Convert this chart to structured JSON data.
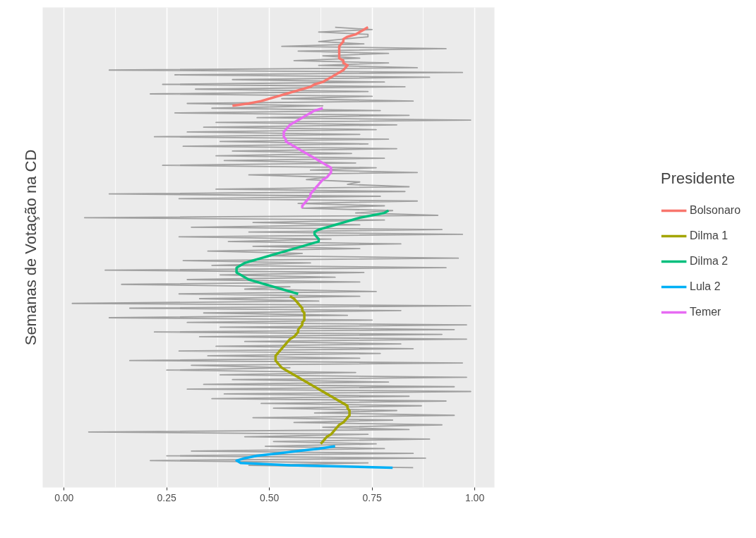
{
  "chart_data": {
    "type": "line",
    "orientation": "horizontal",
    "ylabel": "Semanas de Votação na CD",
    "legend_title": "Presidente",
    "legend": "right",
    "grid": "x",
    "tick_labels": "x",
    "line_style": "solid",
    "marker": "none",
    "xlim": [
      -0.052,
      1.048
    ],
    "xticks": [
      {
        "value": 0,
        "label": "0.00"
      },
      {
        "value": 0.25,
        "label": "0.25"
      },
      {
        "value": 0.5,
        "label": "0.50"
      },
      {
        "value": 0.75,
        "label": "0.75"
      },
      {
        "value": 1,
        "label": "1.00"
      }
    ],
    "categories": [
      null,
      null,
      null,
      null,
      null,
      null,
      null,
      null,
      null,
      null,
      null,
      null,
      null,
      null,
      null,
      null,
      null,
      null,
      null,
      null,
      null,
      null,
      null,
      null,
      null,
      null,
      null,
      null,
      null,
      null,
      null,
      null,
      null,
      null,
      null,
      null,
      null,
      null,
      null,
      null,
      null,
      null,
      null,
      null,
      null,
      null,
      null,
      null,
      null,
      null,
      null,
      null,
      null,
      null,
      null,
      null,
      null,
      null,
      null,
      null,
      null,
      null,
      null,
      null,
      null,
      null,
      null,
      null,
      null,
      null,
      null,
      null,
      null,
      null,
      null,
      null,
      null,
      null,
      null,
      null,
      null,
      null,
      null,
      null,
      null,
      null,
      null,
      null,
      null,
      null,
      null,
      null,
      null,
      null,
      null,
      null,
      null,
      null,
      null,
      null,
      null,
      null,
      null,
      null,
      null,
      null,
      null,
      null,
      null,
      null,
      null,
      null,
      null,
      null,
      null,
      null,
      null,
      null,
      null,
      null,
      null,
      null,
      null,
      null,
      null,
      null,
      null,
      null,
      null,
      null,
      null,
      null,
      null,
      null,
      null,
      null,
      null,
      null,
      null,
      null,
      null,
      null,
      null,
      null,
      null,
      null,
      null,
      null,
      null,
      null,
      null,
      null,
      null,
      null,
      null,
      null,
      null,
      null,
      null,
      null,
      null,
      null,
      null,
      null,
      null,
      null,
      null,
      null,
      null,
      null,
      null,
      null,
      null,
      null,
      null,
      null,
      null,
      null,
      null,
      null,
      null,
      null,
      null,
      null,
      null,
      null
    ],
    "series": [
      {
        "color": "#a0a0a0",
        "values": [
          0.66,
          0.75,
          0.62,
          0.74,
          0.74,
          0.68,
          0.62,
          0.73,
          0.53,
          0.93,
          0.57,
          0.79,
          0.63,
          0.72,
          0.56,
          0.79,
          0.62,
          0.86,
          0.11,
          0.97,
          0.27,
          0.89,
          0.41,
          0.78,
          0.24,
          0.83,
          0.32,
          0.74,
          0.21,
          0.75,
          0.53,
          0.85,
          0.3,
          0.63,
          0.36,
          0.77,
          0.27,
          0.84,
          0.47,
          0.99,
          0.37,
          0.81,
          0.34,
          0.76,
          0.3,
          0.72,
          0.22,
          0.79,
          0.38,
          0.74,
          0.29,
          0.81,
          0.41,
          0.7,
          0.37,
          0.78,
          0.39,
          0.71,
          0.24,
          0.76,
          0.6,
          0.86,
          0.45,
          0.64,
          0.59,
          0.72,
          0.69,
          0.84,
          0.37,
          0.83,
          0.11,
          0.77,
          0.28,
          0.86,
          0.57,
          0.78,
          0.58,
          0.8,
          0.71,
          0.91,
          0.05,
          0.78,
          0.46,
          0.72,
          0.31,
          0.92,
          0.45,
          0.97,
          0.28,
          0.65,
          0.4,
          0.82,
          0.46,
          0.72,
          0.35,
          0.58,
          0.5,
          0.96,
          0.29,
          0.6,
          0.36,
          0.93,
          0.1,
          0.73,
          0.38,
          0.66,
          0.3,
          0.72,
          0.14,
          0.55,
          0.44,
          0.76,
          0.28,
          0.72,
          0.33,
          0.62,
          0.02,
          0.99,
          0.16,
          0.82,
          0.34,
          0.69,
          0.11,
          0.75,
          0.3,
          0.98,
          0.38,
          0.95,
          0.22,
          0.92,
          0.33,
          0.98,
          0.44,
          0.82,
          0.37,
          0.85,
          0.28,
          0.77,
          0.35,
          0.72,
          0.16,
          0.97,
          0.31,
          0.55,
          0.25,
          0.71,
          0.38,
          0.98,
          0.41,
          0.79,
          0.34,
          0.95,
          0.3,
          0.99,
          0.39,
          0.84,
          0.36,
          0.93,
          0.48,
          0.87,
          0.51,
          0.81,
          0.61,
          0.95,
          0.46,
          0.8,
          0.56,
          0.92,
          0.63,
          0.84,
          0.06,
          0.74,
          0.44,
          0.89,
          0.51,
          0.76,
          0.49,
          0.78,
          0.31,
          0.85,
          0.25,
          0.88,
          0.21,
          0.74,
          0.45,
          0.85
        ]
      },
      {
        "name": "Bolsonaro",
        "color": "#f8766d",
        "values": [
          0.74,
          0.73,
          0.72,
          0.71,
          0.69,
          0.68,
          0.68,
          0.675,
          0.67,
          0.67,
          0.67,
          0.67,
          0.67,
          0.67,
          0.68,
          0.68,
          0.69,
          0.685,
          0.68,
          0.67,
          0.66,
          0.65,
          0.64,
          0.63,
          0.61,
          0.6,
          0.58,
          0.56,
          0.54,
          0.52,
          0.5,
          0.48,
          0.45,
          0.41,
          null,
          null,
          null,
          null,
          null,
          null,
          null,
          null,
          null,
          null,
          null,
          null,
          null,
          null,
          null,
          null,
          null,
          null,
          null,
          null,
          null,
          null,
          null,
          null,
          null,
          null,
          null,
          null,
          null,
          null,
          null,
          null,
          null,
          null,
          null,
          null,
          null,
          null,
          null,
          null,
          null,
          null,
          null,
          null,
          null,
          null,
          null,
          null,
          null,
          null,
          null,
          null,
          null,
          null,
          null,
          null,
          null,
          null,
          null,
          null,
          null,
          null,
          null,
          null,
          null,
          null,
          null,
          null,
          null,
          null,
          null,
          null,
          null,
          null,
          null,
          null,
          null,
          null,
          null,
          null,
          null,
          null,
          null,
          null,
          null,
          null,
          null,
          null,
          null,
          null,
          null,
          null,
          null,
          null,
          null,
          null,
          null,
          null,
          null,
          null,
          null,
          null,
          null,
          null,
          null,
          null,
          null,
          null,
          null,
          null,
          null,
          null,
          null,
          null,
          null,
          null,
          null,
          null,
          null,
          null,
          null,
          null,
          null,
          null,
          null,
          null,
          null,
          null,
          null,
          null,
          null,
          null,
          null,
          null,
          null,
          null,
          null,
          null,
          null,
          null,
          null,
          null,
          null,
          null,
          null,
          null,
          null,
          null,
          null,
          null,
          null,
          null
        ]
      },
      {
        "name": "Dilma 1",
        "color": "#a3a500",
        "values": [
          null,
          null,
          null,
          null,
          null,
          null,
          null,
          null,
          null,
          null,
          null,
          null,
          null,
          null,
          null,
          null,
          null,
          null,
          null,
          null,
          null,
          null,
          null,
          null,
          null,
          null,
          null,
          null,
          null,
          null,
          null,
          null,
          null,
          null,
          null,
          null,
          null,
          null,
          null,
          null,
          null,
          null,
          null,
          null,
          null,
          null,
          null,
          null,
          null,
          null,
          null,
          null,
          null,
          null,
          null,
          null,
          null,
          null,
          null,
          null,
          null,
          null,
          null,
          null,
          null,
          null,
          null,
          null,
          null,
          null,
          null,
          null,
          null,
          null,
          null,
          null,
          null,
          null,
          null,
          null,
          null,
          null,
          null,
          null,
          null,
          null,
          null,
          null,
          null,
          null,
          null,
          null,
          null,
          null,
          null,
          null,
          null,
          null,
          null,
          null,
          null,
          null,
          null,
          null,
          null,
          null,
          null,
          null,
          null,
          null,
          null,
          null,
          null,
          0.55,
          0.56,
          0.565,
          0.57,
          0.575,
          0.58,
          0.58,
          0.585,
          0.585,
          0.585,
          0.585,
          0.58,
          0.58,
          0.575,
          0.57,
          0.57,
          0.565,
          0.56,
          0.55,
          0.545,
          0.54,
          0.535,
          0.53,
          0.525,
          0.52,
          0.515,
          0.515,
          0.515,
          0.52,
          0.525,
          0.53,
          0.54,
          0.55,
          0.56,
          0.57,
          0.58,
          0.59,
          0.6,
          0.61,
          0.62,
          0.63,
          0.64,
          0.65,
          0.66,
          0.67,
          0.68,
          0.69,
          0.69,
          0.695,
          0.695,
          0.695,
          0.69,
          0.685,
          0.68,
          0.67,
          0.665,
          0.66,
          0.655,
          0.65,
          0.64,
          0.635,
          0.63,
          0.625,
          null,
          null,
          null,
          null,
          null,
          null,
          null,
          null,
          null,
          null
        ]
      },
      {
        "name": "Dilma 2",
        "color": "#00bf7d",
        "values": [
          null,
          null,
          null,
          null,
          null,
          null,
          null,
          null,
          null,
          null,
          null,
          null,
          null,
          null,
          null,
          null,
          null,
          null,
          null,
          null,
          null,
          null,
          null,
          null,
          null,
          null,
          null,
          null,
          null,
          null,
          null,
          null,
          null,
          null,
          null,
          null,
          null,
          null,
          null,
          null,
          null,
          null,
          null,
          null,
          null,
          null,
          null,
          null,
          null,
          null,
          null,
          null,
          null,
          null,
          null,
          null,
          null,
          null,
          null,
          null,
          null,
          null,
          null,
          null,
          null,
          null,
          null,
          null,
          null,
          null,
          null,
          null,
          null,
          null,
          null,
          null,
          null,
          0.79,
          0.78,
          0.75,
          0.72,
          0.7,
          0.68,
          0.66,
          0.64,
          0.62,
          0.61,
          0.61,
          0.615,
          0.62,
          0.62,
          0.6,
          0.58,
          0.56,
          0.54,
          0.52,
          0.5,
          0.48,
          0.46,
          0.44,
          0.43,
          0.42,
          0.42,
          0.42,
          0.43,
          0.44,
          0.45,
          0.47,
          0.49,
          0.51,
          0.53,
          0.55,
          0.57,
          null,
          null,
          null,
          null,
          null,
          null,
          null,
          null,
          null,
          null,
          null,
          null,
          null,
          null,
          null,
          null,
          null,
          null,
          null,
          null,
          null,
          null,
          null,
          null,
          null,
          null,
          null,
          null,
          null,
          null,
          null,
          null,
          null,
          null,
          null,
          null,
          null,
          null,
          null,
          null,
          null,
          null,
          null,
          null,
          null,
          null,
          null,
          null,
          null,
          null,
          null,
          null,
          null,
          null,
          null,
          null,
          null,
          null,
          null,
          null,
          null,
          null,
          null,
          null,
          null,
          null,
          null,
          null,
          null,
          null,
          null,
          null,
          null
        ]
      },
      {
        "name": "Lula 2",
        "color": "#00b0f6",
        "values": [
          null,
          null,
          null,
          null,
          null,
          null,
          null,
          null,
          null,
          null,
          null,
          null,
          null,
          null,
          null,
          null,
          null,
          null,
          null,
          null,
          null,
          null,
          null,
          null,
          null,
          null,
          null,
          null,
          null,
          null,
          null,
          null,
          null,
          null,
          null,
          null,
          null,
          null,
          null,
          null,
          null,
          null,
          null,
          null,
          null,
          null,
          null,
          null,
          null,
          null,
          null,
          null,
          null,
          null,
          null,
          null,
          null,
          null,
          null,
          null,
          null,
          null,
          null,
          null,
          null,
          null,
          null,
          null,
          null,
          null,
          null,
          null,
          null,
          null,
          null,
          null,
          null,
          null,
          null,
          null,
          null,
          null,
          null,
          null,
          null,
          null,
          null,
          null,
          null,
          null,
          null,
          null,
          null,
          null,
          null,
          null,
          null,
          null,
          null,
          null,
          null,
          null,
          null,
          null,
          null,
          null,
          null,
          null,
          null,
          null,
          null,
          null,
          null,
          null,
          null,
          null,
          null,
          null,
          null,
          null,
          null,
          null,
          null,
          null,
          null,
          null,
          null,
          null,
          null,
          null,
          null,
          null,
          null,
          null,
          null,
          null,
          null,
          null,
          null,
          null,
          null,
          null,
          null,
          null,
          null,
          null,
          null,
          null,
          null,
          null,
          null,
          null,
          null,
          null,
          null,
          null,
          null,
          null,
          null,
          null,
          null,
          null,
          null,
          null,
          null,
          null,
          null,
          null,
          null,
          null,
          null,
          null,
          null,
          null,
          null,
          null,
          0.66,
          0.62,
          0.57,
          0.52,
          0.47,
          0.44,
          0.42,
          0.43,
          0.55,
          0.8
        ]
      },
      {
        "name": "Temer",
        "color": "#e76bf3",
        "values": [
          null,
          null,
          null,
          null,
          null,
          null,
          null,
          null,
          null,
          null,
          null,
          null,
          null,
          null,
          null,
          null,
          null,
          null,
          null,
          null,
          null,
          null,
          null,
          null,
          null,
          null,
          null,
          null,
          null,
          null,
          null,
          null,
          null,
          null,
          0.63,
          0.61,
          0.6,
          0.59,
          0.58,
          0.57,
          0.56,
          0.55,
          0.545,
          0.54,
          0.535,
          0.535,
          0.535,
          0.54,
          0.54,
          0.55,
          0.56,
          0.57,
          0.58,
          0.59,
          0.6,
          0.61,
          0.62,
          0.63,
          0.64,
          0.65,
          0.65,
          0.65,
          0.645,
          0.64,
          0.63,
          0.625,
          0.62,
          0.615,
          0.61,
          0.605,
          0.6,
          0.6,
          0.595,
          0.59,
          0.585,
          0.58,
          0.58,
          null,
          null,
          null,
          null,
          null,
          null,
          null,
          null,
          null,
          null,
          null,
          null,
          null,
          null,
          null,
          null,
          null,
          null,
          null,
          null,
          null,
          null,
          null,
          null,
          null,
          null,
          null,
          null,
          null,
          null,
          null,
          null,
          null,
          null,
          null,
          null,
          null,
          null,
          null,
          null,
          null,
          null,
          null,
          null,
          null,
          null,
          null,
          null,
          null,
          null,
          null,
          null,
          null,
          null,
          null,
          null,
          null,
          null,
          null,
          null,
          null,
          null,
          null,
          null,
          null,
          null,
          null,
          null,
          null,
          null,
          null,
          null,
          null,
          null,
          null,
          null,
          null,
          null,
          null,
          null,
          null,
          null,
          null,
          null,
          null,
          null,
          null,
          null,
          null,
          null,
          null,
          null,
          null,
          null,
          null,
          null,
          null,
          null,
          null,
          null,
          null,
          null,
          null,
          null,
          null,
          null,
          null,
          null,
          null
        ]
      }
    ]
  }
}
